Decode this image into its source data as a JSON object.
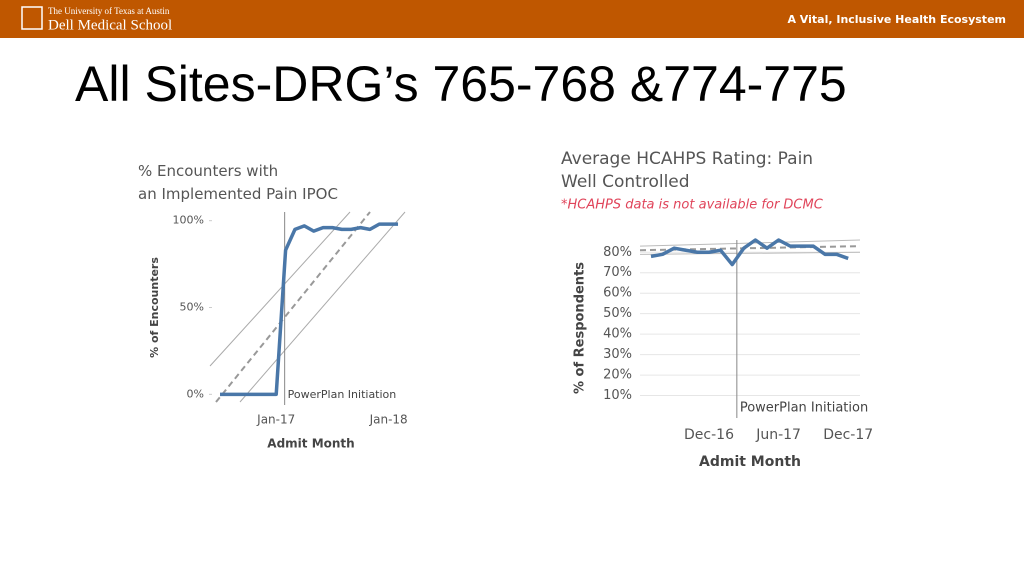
{
  "header": {
    "university": "The University of Texas at Austin",
    "school": "Dell Medical School",
    "tagline": "A Vital, Inclusive Health Ecosystem"
  },
  "title": "All Sites-DRG’s 765-768 &774-775",
  "chart_data": [
    {
      "type": "line",
      "title": "% Encounters with an Implemented Pain IPOC",
      "x_label": "Admit Month",
      "y_label": "% of Encounters",
      "categories": [
        null,
        null,
        null,
        null,
        null,
        null,
        "Jan-17",
        null,
        null,
        null,
        null,
        null,
        null,
        null,
        null,
        null,
        null,
        null,
        "Jan-18",
        null
      ],
      "series": [
        {
          "name": "% Encounters",
          "color": "#4a77a8",
          "values": [
            0,
            0,
            0,
            0,
            0,
            0,
            0,
            83,
            95,
            97,
            94,
            96,
            96,
            95,
            95,
            96,
            95,
            98,
            98,
            98
          ]
        }
      ],
      "ylim": [
        -5,
        105
      ],
      "yticks": [
        {
          "value": 0,
          "label": "0%"
        },
        {
          "value": 50,
          "label": "50%"
        },
        {
          "value": 100,
          "label": "100%"
        }
      ],
      "grid": false,
      "annotation": "PowerPlan Initiation"
    },
    {
      "type": "line",
      "title": "Average HCAHPS Rating: Pain Well Controlled",
      "subtitle": "*HCAHPS data is not available for DCMC",
      "x_label": "Admit Month",
      "y_label": "% of Respondents",
      "categories": [
        null,
        null,
        null,
        null,
        null,
        "Dec-16",
        null,
        null,
        null,
        null,
        null,
        "Jun-17",
        null,
        null,
        null,
        null,
        null,
        "Dec-17"
      ],
      "series": [
        {
          "name": "Average HCAHPS Rating",
          "color": "#4a77a8",
          "values": [
            78,
            79,
            82,
            81,
            80,
            80,
            81,
            74,
            82,
            86,
            82,
            86,
            83,
            83,
            83,
            79,
            79,
            77
          ]
        }
      ],
      "ylim": [
        0,
        86
      ],
      "yticks": [
        {
          "value": 10,
          "label": "10%"
        },
        {
          "value": 20,
          "label": "20%"
        },
        {
          "value": 30,
          "label": "30%"
        },
        {
          "value": 40,
          "label": "40%"
        },
        {
          "value": 50,
          "label": "50%"
        },
        {
          "value": 60,
          "label": "60%"
        },
        {
          "value": 70,
          "label": "70%"
        },
        {
          "value": 80,
          "label": "80%"
        }
      ],
      "grid": true,
      "annotation": "PowerPlan Initiation"
    }
  ]
}
